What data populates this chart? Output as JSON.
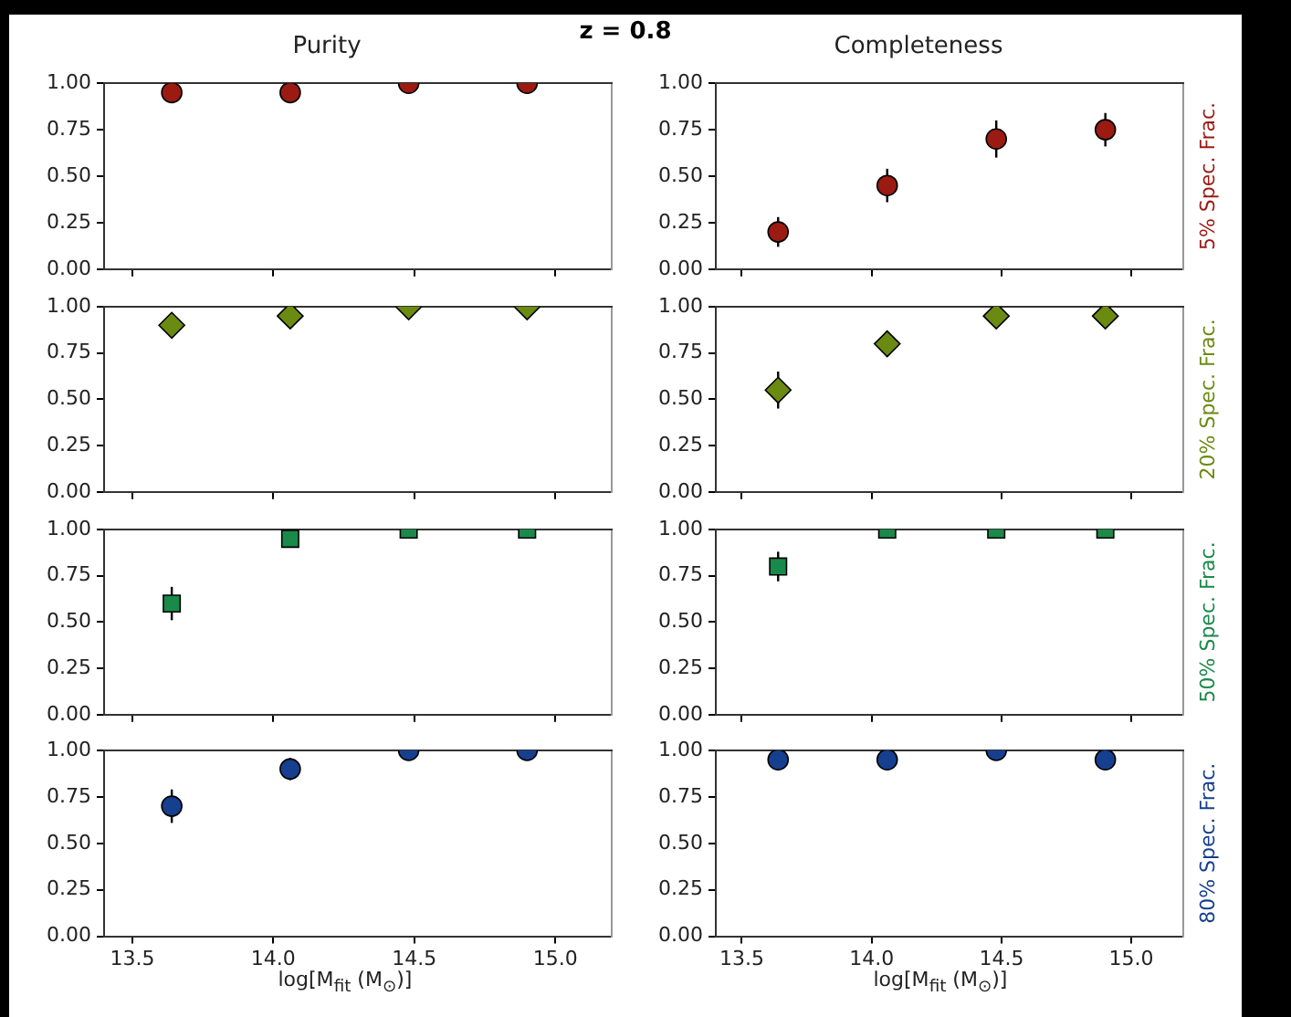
{
  "chart_data": [
    {
      "type": "scatter",
      "title": "Purity",
      "annotations": [
        "z = 0.8"
      ],
      "x": [
        13.64,
        14.06,
        14.48,
        14.9
      ],
      "marker": "circle",
      "tick_labels": "y",
      "xlim": [
        13.4,
        15.2
      ],
      "xticks": [
        13.5,
        14,
        14.5,
        15
      ],
      "ylim": [
        0,
        1
      ],
      "yticks": [
        {
          "value": 0,
          "label": "0.00"
        },
        {
          "value": 0.25,
          "label": "0.25"
        },
        {
          "value": 0.5,
          "label": "0.50"
        },
        {
          "value": 0.75,
          "label": "0.75"
        },
        {
          "value": 1,
          "label": "1.00"
        }
      ],
      "series": [
        {
          "color": "#9b1a12",
          "values": [
            0.95,
            0.95,
            1.0,
            1.0
          ]
        }
      ]
    },
    {
      "type": "scatter",
      "title": "Completeness",
      "y2label": "5% Spec. Frac.",
      "x": [
        13.64,
        14.06,
        14.48,
        14.9
      ],
      "marker": "circle",
      "tick_labels": "y",
      "xlim": [
        13.4,
        15.2
      ],
      "xticks": [
        13.5,
        14,
        14.5,
        15
      ],
      "ylim": [
        0,
        1
      ],
      "yticks": [
        {
          "value": 0,
          "label": "0.00"
        },
        {
          "value": 0.25,
          "label": "0.25"
        },
        {
          "value": 0.5,
          "label": "0.50"
        },
        {
          "value": 0.75,
          "label": "0.75"
        },
        {
          "value": 1,
          "label": "1.00"
        }
      ],
      "series": [
        {
          "color": "#9b1a12",
          "values": [
            0.2,
            0.45,
            0.7,
            0.75
          ],
          "errors": [
            0.08,
            0.09,
            0.1,
            0.09
          ]
        }
      ]
    },
    {
      "type": "scatter",
      "x": [
        13.64,
        14.06,
        14.48,
        14.9
      ],
      "marker": "diamond",
      "tick_labels": "y",
      "xlim": [
        13.4,
        15.2
      ],
      "xticks": [
        13.5,
        14,
        14.5,
        15
      ],
      "ylim": [
        0,
        1
      ],
      "yticks": [
        {
          "value": 0,
          "label": "0.00"
        },
        {
          "value": 0.25,
          "label": "0.25"
        },
        {
          "value": 0.5,
          "label": "0.50"
        },
        {
          "value": 0.75,
          "label": "0.75"
        },
        {
          "value": 1,
          "label": "1.00"
        }
      ],
      "series": [
        {
          "color": "#6b8a12",
          "values": [
            0.9,
            0.95,
            1.0,
            1.0
          ]
        }
      ]
    },
    {
      "type": "scatter",
      "y2label": "20% Spec. Frac.",
      "x": [
        13.64,
        14.06,
        14.48,
        14.9
      ],
      "marker": "diamond",
      "tick_labels": "y",
      "xlim": [
        13.4,
        15.2
      ],
      "xticks": [
        13.5,
        14,
        14.5,
        15
      ],
      "ylim": [
        0,
        1
      ],
      "yticks": [
        {
          "value": 0,
          "label": "0.00"
        },
        {
          "value": 0.25,
          "label": "0.25"
        },
        {
          "value": 0.5,
          "label": "0.50"
        },
        {
          "value": 0.75,
          "label": "0.75"
        },
        {
          "value": 1,
          "label": "1.00"
        }
      ],
      "series": [
        {
          "color": "#6b8a12",
          "values": [
            0.55,
            0.8,
            0.95,
            0.95
          ],
          "errors": [
            0.1,
            0.07,
            null,
            null
          ]
        }
      ]
    },
    {
      "type": "scatter",
      "x": [
        13.64,
        14.06,
        14.48,
        14.9
      ],
      "marker": "square",
      "tick_labels": "y",
      "xlim": [
        13.4,
        15.2
      ],
      "xticks": [
        13.5,
        14,
        14.5,
        15
      ],
      "ylim": [
        0,
        1
      ],
      "yticks": [
        {
          "value": 0,
          "label": "0.00"
        },
        {
          "value": 0.25,
          "label": "0.25"
        },
        {
          "value": 0.5,
          "label": "0.50"
        },
        {
          "value": 0.75,
          "label": "0.75"
        },
        {
          "value": 1,
          "label": "1.00"
        }
      ],
      "series": [
        {
          "color": "#1a8a4a",
          "values": [
            0.6,
            0.95,
            1.0,
            1.0
          ],
          "errors": [
            0.09,
            null,
            null,
            null
          ]
        }
      ]
    },
    {
      "type": "scatter",
      "y2label": "50% Spec. Frac.",
      "x": [
        13.64,
        14.06,
        14.48,
        14.9
      ],
      "marker": "square",
      "tick_labels": "y",
      "xlim": [
        13.4,
        15.2
      ],
      "xticks": [
        13.5,
        14,
        14.5,
        15
      ],
      "ylim": [
        0,
        1
      ],
      "yticks": [
        {
          "value": 0,
          "label": "0.00"
        },
        {
          "value": 0.25,
          "label": "0.25"
        },
        {
          "value": 0.5,
          "label": "0.50"
        },
        {
          "value": 0.75,
          "label": "0.75"
        },
        {
          "value": 1,
          "label": "1.00"
        }
      ],
      "series": [
        {
          "color": "#1a8a4a",
          "values": [
            0.8,
            1.0,
            1.0,
            1.0
          ],
          "errors": [
            0.08,
            null,
            null,
            null
          ]
        }
      ]
    },
    {
      "type": "scatter",
      "xlabel": "log[M$_{fit}$ (M$_{⊙}$)]",
      "x": [
        13.64,
        14.06,
        14.48,
        14.9
      ],
      "marker": "circle",
      "xlim": [
        13.4,
        15.2
      ],
      "xticks": [
        {
          "value": 13.5,
          "label": "13.5"
        },
        {
          "value": 14,
          "label": "14.0"
        },
        {
          "value": 14.5,
          "label": "14.5"
        },
        {
          "value": 15,
          "label": "15.0"
        }
      ],
      "ylim": [
        0,
        1
      ],
      "yticks": [
        {
          "value": 0,
          "label": "0.00"
        },
        {
          "value": 0.25,
          "label": "0.25"
        },
        {
          "value": 0.5,
          "label": "0.50"
        },
        {
          "value": 0.75,
          "label": "0.75"
        },
        {
          "value": 1,
          "label": "1.00"
        }
      ],
      "series": [
        {
          "color": "#173f8f",
          "values": [
            0.7,
            0.9,
            1.0,
            1.0
          ],
          "errors": [
            0.09,
            0.06,
            null,
            null
          ]
        }
      ]
    },
    {
      "type": "scatter",
      "xlabel": "log[M$_{fit}$ (M$_{⊙}$)]",
      "y2label": "80% Spec. Frac.",
      "x": [
        13.64,
        14.06,
        14.48,
        14.9
      ],
      "marker": "circle",
      "xlim": [
        13.4,
        15.2
      ],
      "xticks": [
        {
          "value": 13.5,
          "label": "13.5"
        },
        {
          "value": 14,
          "label": "14.0"
        },
        {
          "value": 14.5,
          "label": "14.5"
        },
        {
          "value": 15,
          "label": "15.0"
        }
      ],
      "ylim": [
        0,
        1
      ],
      "yticks": [
        {
          "value": 0,
          "label": "0.00"
        },
        {
          "value": 0.25,
          "label": "0.25"
        },
        {
          "value": 0.5,
          "label": "0.50"
        },
        {
          "value": 0.75,
          "label": "0.75"
        },
        {
          "value": 1,
          "label": "1.00"
        }
      ],
      "series": [
        {
          "color": "#173f8f",
          "values": [
            0.95,
            0.95,
            1.0,
            0.95
          ]
        }
      ]
    }
  ]
}
